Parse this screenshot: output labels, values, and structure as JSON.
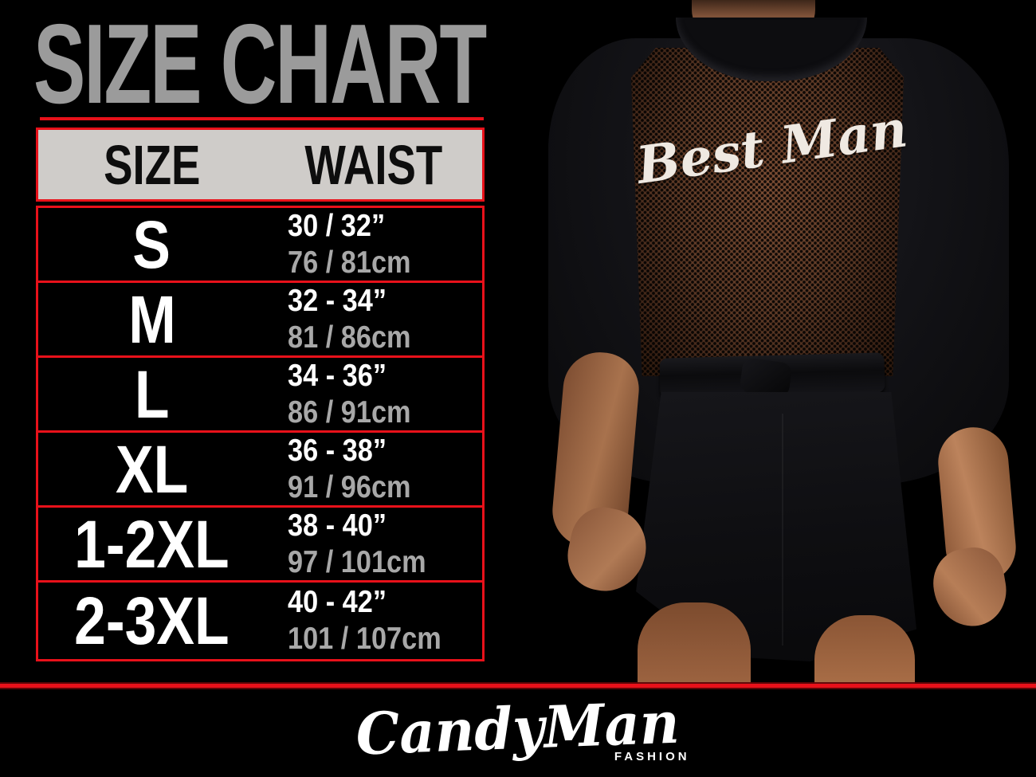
{
  "title": "SIZE CHART",
  "table": {
    "headers": [
      "SIZE",
      "WAIST"
    ],
    "rows": [
      {
        "size": "S",
        "waist_inches": "30 / 32”",
        "waist_cm": "76 / 81cm"
      },
      {
        "size": "M",
        "waist_inches": "32 - 34”",
        "waist_cm": "81 / 86cm"
      },
      {
        "size": "L",
        "waist_inches": "34 - 36”",
        "waist_cm": "86 / 91cm"
      },
      {
        "size": "XL",
        "waist_inches": "36 - 38”",
        "waist_cm": "91 / 96cm"
      },
      {
        "size": "1-2XL",
        "waist_inches": "38 - 40”",
        "waist_cm": "97 / 101cm"
      },
      {
        "size": "2-3XL",
        "waist_inches": "40 - 42”",
        "waist_cm": "101 / 107cm"
      }
    ]
  },
  "photo": {
    "garment_text": "Best Man"
  },
  "brand": {
    "name": "CandyMan",
    "sub_label": "FASHION"
  },
  "colors": {
    "background": "#000000",
    "accent_red": "#e8111a",
    "title_gray": "#9b9b9b",
    "header_bg": "#cfccc9",
    "header_text": "#0d0d0d",
    "row_primary_text": "#ffffff",
    "row_secondary_text": "#a8a8a8",
    "mesh_brown": "#6e452f",
    "skin_tone": "#b07a55"
  },
  "chart_data": {
    "type": "table",
    "title": "SIZE CHART",
    "columns": [
      "SIZE",
      "WAIST"
    ],
    "rows": [
      [
        "S",
        "30 / 32” | 76 / 81cm"
      ],
      [
        "M",
        "32 - 34” | 81 / 86cm"
      ],
      [
        "L",
        "34 - 36” | 86 / 91cm"
      ],
      [
        "XL",
        "36 - 38” | 91 / 96cm"
      ],
      [
        "1-2XL",
        "38 - 40” | 97 / 101cm"
      ],
      [
        "2-3XL",
        "40 - 42” | 101 / 107cm"
      ]
    ]
  }
}
